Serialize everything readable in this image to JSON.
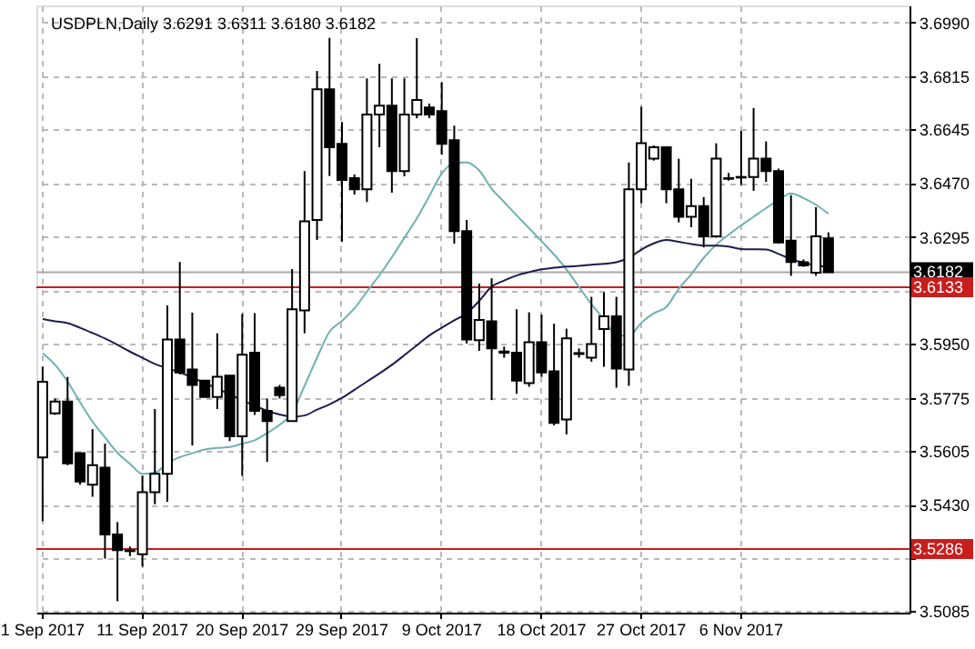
{
  "chart_data": {
    "type": "candlestick",
    "title": "USDPLN,Daily 3.6291 3.6311 3.6180 3.6182",
    "categories": [
      "1 Sep 2017",
      null,
      null,
      null,
      null,
      null,
      null,
      null,
      "11 Sep 2017",
      null,
      null,
      null,
      null,
      null,
      null,
      null,
      "20 Sep 2017",
      null,
      null,
      null,
      null,
      null,
      null,
      null,
      "29 Sep 2017",
      null,
      null,
      null,
      null,
      null,
      null,
      null,
      "9 Oct 2017",
      null,
      null,
      null,
      null,
      null,
      null,
      null,
      "18 Oct 2017",
      null,
      null,
      null,
      null,
      null,
      null,
      null,
      "27 Oct 2017",
      null,
      null,
      null,
      null,
      null,
      null,
      null,
      "6 Nov 2017",
      null,
      null,
      null,
      null,
      null,
      null,
      null
    ],
    "ohlc": [
      [
        3.5582,
        3.5876,
        3.5376,
        3.5827
      ],
      [
        3.5725,
        3.5773,
        3.572,
        3.5763
      ],
      [
        3.5763,
        3.5843,
        3.5557,
        3.5563
      ],
      [
        3.5596,
        3.5596,
        3.5494,
        3.5504
      ],
      [
        3.5494,
        3.5674,
        3.5455,
        3.5557
      ],
      [
        3.5549,
        3.5627,
        3.5255,
        3.5333
      ],
      [
        3.5333,
        3.5373,
        3.5117,
        3.5282
      ],
      [
        3.5279,
        3.5294,
        3.5263,
        3.5281
      ],
      [
        3.5269,
        3.5523,
        3.5229,
        3.547
      ],
      [
        3.547,
        3.5739,
        3.5431,
        3.5529
      ],
      [
        3.5529,
        3.6074,
        3.5439,
        3.5964
      ],
      [
        3.5964,
        3.6215,
        3.5851,
        3.5857
      ],
      [
        3.5867,
        3.6051,
        3.5621,
        3.5817
      ],
      [
        3.5831,
        3.5831,
        3.5778,
        3.5778
      ],
      [
        3.5778,
        3.5984,
        3.5739,
        3.5843
      ],
      [
        3.5847,
        3.5847,
        3.5635,
        3.5651
      ],
      [
        3.5651,
        3.6047,
        3.5523,
        3.5915
      ],
      [
        3.5921,
        3.6049,
        3.572,
        3.5733
      ],
      [
        3.5733,
        3.5773,
        3.5568,
        3.57
      ],
      [
        3.5808,
        3.5817,
        3.5773,
        3.5784
      ],
      [
        3.57,
        3.6192,
        3.5698,
        3.6062
      ],
      [
        3.6058,
        3.6509,
        3.5984,
        3.6346
      ],
      [
        3.6351,
        3.6833,
        3.6286,
        3.6774
      ],
      [
        3.6774,
        3.694,
        3.6493,
        3.6586
      ],
      [
        3.6597,
        3.6668,
        3.628,
        3.648
      ],
      [
        3.6486,
        3.6498,
        3.6433,
        3.645
      ],
      [
        3.645,
        3.6809,
        3.6409,
        3.6692
      ],
      [
        3.6692,
        3.6856,
        3.6586,
        3.6721
      ],
      [
        3.6721,
        3.6809,
        3.6439,
        3.6509
      ],
      [
        3.6509,
        3.6809,
        3.6492,
        3.6692
      ],
      [
        3.6692,
        3.6939,
        3.668,
        3.6739
      ],
      [
        3.6715,
        3.6727,
        3.668,
        3.6692
      ],
      [
        3.6703,
        3.6797,
        3.6562,
        3.6597
      ],
      [
        3.6609,
        3.6656,
        3.6274,
        3.6315
      ],
      [
        3.6315,
        3.6351,
        3.5951,
        3.5964
      ],
      [
        3.5962,
        3.6145,
        3.5927,
        3.6027
      ],
      [
        3.6023,
        3.6162,
        3.5768,
        3.5935
      ],
      [
        3.5925,
        3.5941,
        3.5905,
        3.5921
      ],
      [
        3.5921,
        3.6062,
        3.5788,
        3.5831
      ],
      [
        3.5823,
        3.6052,
        3.5811,
        3.5955
      ],
      [
        3.5955,
        3.6045,
        3.5843,
        3.5857
      ],
      [
        3.5861,
        3.6015,
        3.5686,
        3.5694
      ],
      [
        3.5705,
        3.5999,
        3.5657,
        3.5968
      ],
      [
        3.592,
        3.5935,
        3.5905,
        3.5917
      ],
      [
        3.5905,
        3.6102,
        3.5892,
        3.5949
      ],
      [
        3.5998,
        3.6117,
        3.5876,
        3.6039
      ],
      [
        3.6039,
        3.6102,
        3.5808,
        3.587
      ],
      [
        3.5867,
        3.6537,
        3.5814,
        3.645
      ],
      [
        3.645,
        3.6717,
        3.6405,
        3.6599
      ],
      [
        3.6549,
        3.6592,
        3.6543,
        3.6586
      ],
      [
        3.6586,
        3.6586,
        3.6405,
        3.645
      ],
      [
        3.645,
        3.6549,
        3.6343,
        3.6361
      ],
      [
        3.6361,
        3.6484,
        3.6327,
        3.6396
      ],
      [
        3.6396,
        3.6425,
        3.6262,
        3.6298
      ],
      [
        3.6298,
        3.6599,
        3.6293,
        3.6549
      ],
      [
        3.6486,
        3.6503,
        3.6478,
        3.6484
      ],
      [
        3.6488,
        3.6639,
        3.6464,
        3.649
      ],
      [
        3.649,
        3.6713,
        3.6445,
        3.6549
      ],
      [
        3.6549,
        3.6605,
        3.6474,
        3.6509
      ],
      [
        3.6509,
        3.6517,
        3.6274,
        3.6278
      ],
      [
        3.6284,
        3.6431,
        3.617,
        3.6215
      ],
      [
        3.6214,
        3.6223,
        3.6199,
        3.6204
      ],
      [
        3.618,
        3.6392,
        3.617,
        3.6298
      ],
      [
        3.6291,
        3.6311,
        3.618,
        3.6182
      ]
    ],
    "series": [
      {
        "type": "line",
        "color": "#6fb0b4",
        "values": [
          3.592,
          3.5882,
          3.5828,
          3.5761,
          3.5698,
          3.5647,
          3.5597,
          3.5562,
          3.5529,
          3.5532,
          3.5565,
          3.5583,
          3.5596,
          3.5608,
          3.5613,
          3.5616,
          3.5627,
          3.5638,
          3.5661,
          3.5688,
          3.5726,
          3.5814,
          3.5905,
          3.5989,
          3.6024,
          3.6065,
          3.6119,
          3.6172,
          3.623,
          3.6293,
          3.6356,
          3.6428,
          3.6501,
          3.6535,
          3.6537,
          3.6511,
          3.6452,
          3.6409,
          3.6366,
          3.6324,
          3.6282,
          3.6239,
          3.6191,
          3.6134,
          3.6078,
          3.6029,
          3.5978,
          3.5976,
          3.6018,
          3.6049,
          3.6069,
          3.6128,
          3.6175,
          3.6228,
          3.6271,
          3.6303,
          3.6333,
          3.6361,
          3.6389,
          3.6415,
          3.6437,
          3.6422,
          3.64,
          3.6371
        ]
      },
      {
        "type": "line",
        "color": "#1c1c50",
        "values": [
          3.603,
          3.6023,
          3.6017,
          3.6002,
          3.5985,
          3.5967,
          3.5947,
          3.5925,
          3.5905,
          3.5885,
          3.5871,
          3.5857,
          3.5841,
          3.5823,
          3.5805,
          3.5787,
          3.5767,
          3.575,
          3.5733,
          3.5721,
          3.5714,
          3.5718,
          3.5737,
          3.5754,
          3.5775,
          3.5801,
          3.5828,
          3.5854,
          3.5882,
          3.5913,
          3.5945,
          3.5977,
          3.6002,
          3.6026,
          3.6049,
          3.6089,
          3.6135,
          3.6155,
          3.6171,
          3.6182,
          3.6191,
          3.6196,
          3.62,
          3.6202,
          3.6206,
          3.6209,
          3.6214,
          3.6228,
          3.6255,
          3.6275,
          3.6286,
          3.628,
          3.6273,
          3.6268,
          3.6268,
          3.6265,
          3.6257,
          3.6256,
          3.6255,
          3.6241,
          3.6224,
          3.6213,
          3.6204,
          3.6199
        ]
      }
    ],
    "ylim": [
      3.508,
      3.7045
    ],
    "yticks": [
      {
        "value": 3.699,
        "label": "3.6990"
      },
      {
        "value": 3.6815,
        "label": "3.6815"
      },
      {
        "value": 3.6645,
        "label": "3.6645"
      },
      {
        "value": 3.647,
        "label": "3.6470"
      },
      {
        "value": 3.6295,
        "label": "3.6295"
      },
      {
        "value": 3.612,
        "label": null
      },
      {
        "value": 3.595,
        "label": "3.5950"
      },
      {
        "value": 3.5775,
        "label": "3.5775"
      },
      {
        "value": 3.5605,
        "label": "3.5605"
      },
      {
        "value": 3.543,
        "label": "3.5430"
      },
      {
        "value": 3.5255,
        "label": null
      },
      {
        "value": 3.5085,
        "label": "3.5085"
      }
    ],
    "grid": true,
    "ref_lines": [
      {
        "axis": "y",
        "value": 3.6182,
        "label": "3.6182",
        "color": "#a8a8a8"
      },
      {
        "axis": "y",
        "value": 3.6133,
        "label": "3.6133",
        "color": "#c81e1e"
      },
      {
        "axis": "y",
        "value": 3.5286,
        "label": "3.5286",
        "color": "#c81e1e"
      }
    ]
  }
}
